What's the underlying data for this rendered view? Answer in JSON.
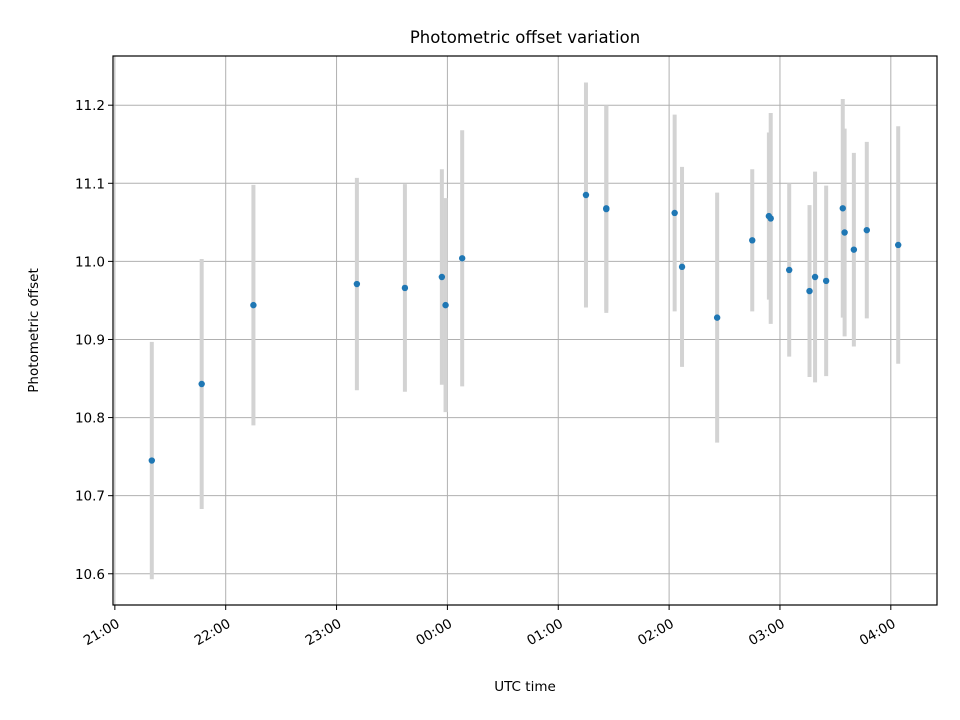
{
  "chart_data": {
    "type": "scatter",
    "title": "Photometric offset variation",
    "xlabel": "UTC time",
    "ylabel": "Photometric offset",
    "x_axis_kind": "time",
    "xlim": [
      "20:59",
      "04:25"
    ],
    "ylim": [
      10.56,
      11.263
    ],
    "grid": true,
    "x_ticks": [
      "21:00",
      "22:00",
      "23:00",
      "00:00",
      "01:00",
      "02:00",
      "03:00",
      "04:00"
    ],
    "y_ticks": [
      "10.6",
      "10.7",
      "10.8",
      "10.9",
      "11.0",
      "11.1",
      "11.2"
    ],
    "colors": {
      "point": "#1f77b4",
      "errorbar": "#d3d3d3",
      "grid": "#b0b0b0",
      "axes": "#000000"
    },
    "points": [
      {
        "x": "21:20",
        "y": 10.745,
        "err": 0.152
      },
      {
        "x": "21:47",
        "y": 10.843,
        "err": 0.16
      },
      {
        "x": "22:15",
        "y": 10.944,
        "err": 0.154
      },
      {
        "x": "23:11",
        "y": 10.971,
        "err": 0.136
      },
      {
        "x": "23:37",
        "y": 10.966,
        "err": 0.133
      },
      {
        "x": "23:57",
        "y": 10.98,
        "err": 0.138
      },
      {
        "x": "23:59",
        "y": 10.944,
        "err": 0.137
      },
      {
        "x": "00:08",
        "y": 11.004,
        "err": 0.164
      },
      {
        "x": "01:15",
        "y": 11.085,
        "err": 0.144
      },
      {
        "x": "01:26",
        "y": 11.068,
        "err": 0.131
      },
      {
        "x": "01:26",
        "y": 11.067,
        "err": 0.133
      },
      {
        "x": "02:03",
        "y": 11.062,
        "err": 0.126
      },
      {
        "x": "02:07",
        "y": 10.993,
        "err": 0.128
      },
      {
        "x": "02:26",
        "y": 10.928,
        "err": 0.16
      },
      {
        "x": "02:45",
        "y": 11.027,
        "err": 0.091
      },
      {
        "x": "02:54",
        "y": 11.058,
        "err": 0.107
      },
      {
        "x": "02:55",
        "y": 11.055,
        "err": 0.135
      },
      {
        "x": "03:05",
        "y": 10.989,
        "err": 0.111
      },
      {
        "x": "03:16",
        "y": 10.962,
        "err": 0.11
      },
      {
        "x": "03:19",
        "y": 10.98,
        "err": 0.135
      },
      {
        "x": "03:25",
        "y": 10.975,
        "err": 0.122
      },
      {
        "x": "03:34",
        "y": 11.068,
        "err": 0.14
      },
      {
        "x": "03:35",
        "y": 11.037,
        "err": 0.133
      },
      {
        "x": "03:40",
        "y": 11.015,
        "err": 0.124
      },
      {
        "x": "03:47",
        "y": 11.04,
        "err": 0.113
      },
      {
        "x": "04:04",
        "y": 11.021,
        "err": 0.152
      }
    ]
  }
}
